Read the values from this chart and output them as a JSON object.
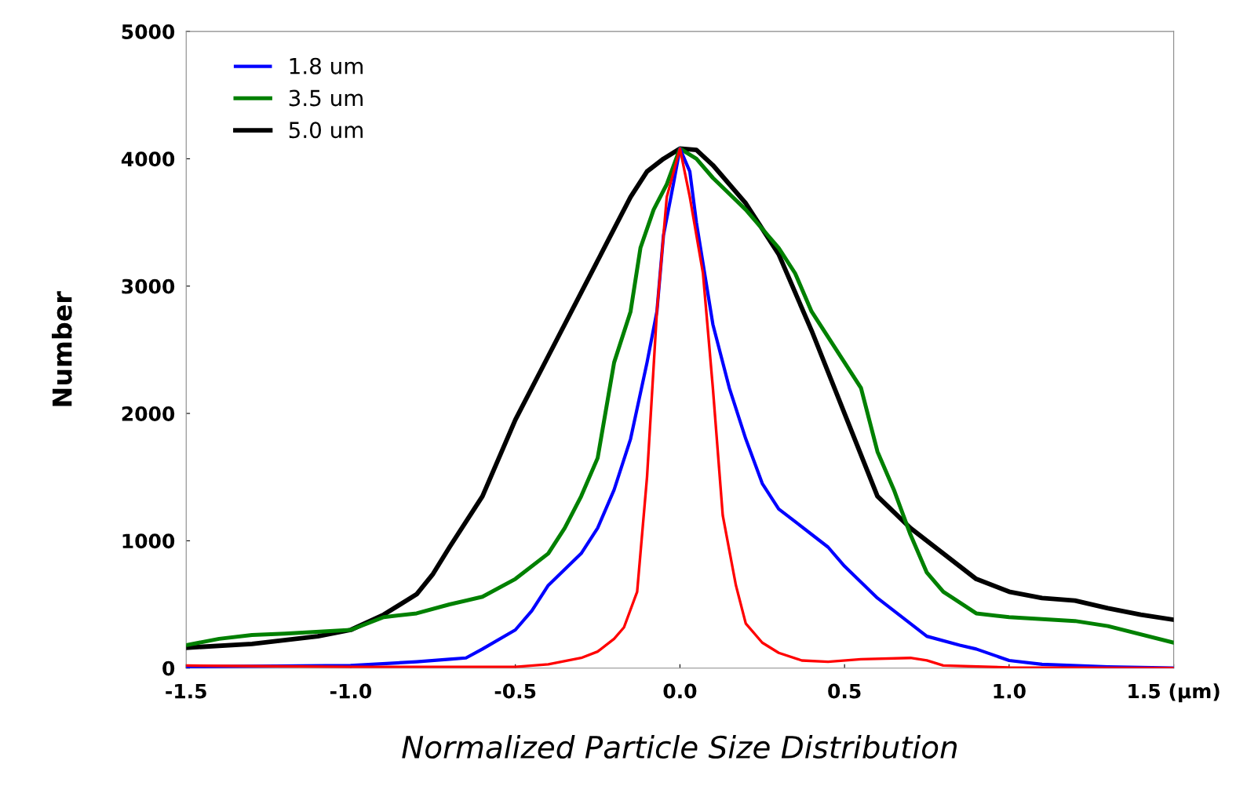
{
  "chart_data": {
    "type": "line",
    "xlabel": "Normalized Particle Size Distribution",
    "ylabel": "Number",
    "xlim": [
      -1.5,
      1.5
    ],
    "xticks": [
      -1.5,
      {
        "value": -1,
        "label": "-1.0"
      },
      -0.5,
      {
        "value": 0,
        "label": "0.0"
      },
      0.5,
      {
        "value": 1,
        "label": "1.0"
      },
      {
        "value": 1.5,
        "label": "1.5 (µm)"
      }
    ],
    "ylim": [
      0,
      5000
    ],
    "yticks": [
      0,
      1000,
      2000,
      3000,
      4000,
      5000
    ],
    "grid": false,
    "legend": "top left",
    "series": [
      {
        "color": "#ff0000",
        "x": [
          -1.5,
          -1.0,
          -0.5,
          -0.4,
          -0.3,
          -0.25,
          -0.2,
          -0.17,
          -0.13,
          -0.1,
          -0.07,
          -0.04,
          0,
          0.03,
          0.07,
          0.1,
          0.13,
          0.17,
          0.2,
          0.25,
          0.3,
          0.37,
          0.45,
          0.55,
          0.7,
          0.75,
          0.8,
          1.0,
          1.5
        ],
        "values": [
          20,
          10,
          10,
          30,
          80,
          130,
          230,
          320,
          600,
          1500,
          2800,
          3700,
          4080,
          3700,
          3100,
          2200,
          1200,
          650,
          350,
          200,
          120,
          60,
          50,
          70,
          80,
          60,
          20,
          5,
          0
        ]
      },
      {
        "name": "1.8 um",
        "color": "#0000ff",
        "x": [
          -1.5,
          -1.0,
          -0.8,
          -0.7,
          -0.65,
          -0.6,
          -0.5,
          -0.45,
          -0.4,
          -0.3,
          -0.25,
          -0.2,
          -0.15,
          -0.1,
          -0.07,
          -0.05,
          -0.02,
          0,
          0.03,
          0.05,
          0.1,
          0.15,
          0.2,
          0.25,
          0.3,
          0.4,
          0.45,
          0.5,
          0.6,
          0.7,
          0.75,
          0.85,
          0.9,
          1.0,
          1.1,
          1.3,
          1.5
        ],
        "values": [
          10,
          20,
          50,
          70,
          80,
          150,
          300,
          450,
          650,
          900,
          1100,
          1400,
          1800,
          2400,
          2800,
          3400,
          3800,
          4080,
          3900,
          3500,
          2700,
          2200,
          1800,
          1450,
          1250,
          1050,
          950,
          800,
          550,
          350,
          250,
          180,
          150,
          60,
          30,
          10,
          0
        ]
      },
      {
        "name": "3.5 um",
        "color": "#008000",
        "x": [
          -1.5,
          -1.4,
          -1.3,
          -1.2,
          -1.0,
          -0.9,
          -0.8,
          -0.7,
          -0.6,
          -0.5,
          -0.4,
          -0.35,
          -0.3,
          -0.25,
          -0.2,
          -0.15,
          -0.12,
          -0.08,
          -0.04,
          0,
          0.05,
          0.1,
          0.2,
          0.3,
          0.35,
          0.4,
          0.5,
          0.55,
          0.6,
          0.65,
          0.7,
          0.75,
          0.8,
          0.9,
          1.0,
          1.2,
          1.3,
          1.5
        ],
        "values": [
          180,
          230,
          260,
          270,
          300,
          400,
          430,
          500,
          560,
          700,
          900,
          1100,
          1350,
          1650,
          2400,
          2800,
          3300,
          3600,
          3800,
          4080,
          4000,
          3850,
          3600,
          3300,
          3100,
          2800,
          2400,
          2200,
          1700,
          1400,
          1050,
          750,
          600,
          430,
          400,
          370,
          330,
          200
        ]
      },
      {
        "name": "5.0 um",
        "color": "#000000",
        "x": [
          -1.5,
          -1.3,
          -1.1,
          -1.0,
          -0.9,
          -0.8,
          -0.75,
          -0.7,
          -0.6,
          -0.5,
          -0.4,
          -0.3,
          -0.2,
          -0.15,
          -0.1,
          -0.05,
          0,
          0.05,
          0.1,
          0.2,
          0.3,
          0.4,
          0.5,
          0.6,
          0.7,
          0.8,
          0.9,
          1.0,
          1.1,
          1.2,
          1.3,
          1.4,
          1.5
        ],
        "values": [
          160,
          190,
          250,
          300,
          420,
          580,
          740,
          950,
          1350,
          1950,
          2450,
          2950,
          3450,
          3700,
          3900,
          4000,
          4080,
          4070,
          3950,
          3650,
          3250,
          2650,
          2000,
          1350,
          1100,
          900,
          700,
          600,
          550,
          530,
          470,
          420,
          380
        ]
      }
    ]
  }
}
